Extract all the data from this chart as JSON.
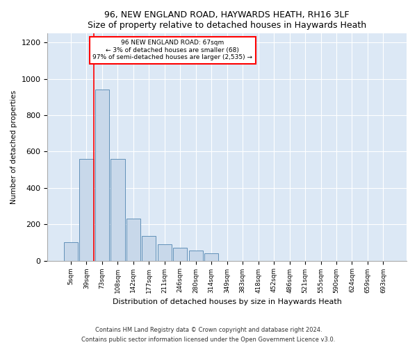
{
  "title": "96, NEW ENGLAND ROAD, HAYWARDS HEATH, RH16 3LF",
  "subtitle": "Size of property relative to detached houses in Haywards Heath",
  "xlabel": "Distribution of detached houses by size in Haywards Heath",
  "ylabel": "Number of detached properties",
  "bar_color": "#c8d8ea",
  "bar_edge_color": "#6090b8",
  "background_color": "#dce8f5",
  "bins": [
    "5sqm",
    "39sqm",
    "73sqm",
    "108sqm",
    "142sqm",
    "177sqm",
    "211sqm",
    "246sqm",
    "280sqm",
    "314sqm",
    "349sqm",
    "383sqm",
    "418sqm",
    "452sqm",
    "486sqm",
    "521sqm",
    "555sqm",
    "590sqm",
    "624sqm",
    "659sqm",
    "693sqm"
  ],
  "values": [
    100,
    560,
    940,
    560,
    230,
    135,
    90,
    70,
    55,
    40,
    0,
    0,
    0,
    0,
    0,
    0,
    0,
    0,
    0,
    0,
    0
  ],
  "ylim": [
    0,
    1250
  ],
  "yticks": [
    0,
    200,
    400,
    600,
    800,
    1000,
    1200
  ],
  "vline_bin_index": 1,
  "annotation_line1": "96 NEW ENGLAND ROAD: 67sqm",
  "annotation_line2": "← 3% of detached houses are smaller (68)",
  "annotation_line3": "97% of semi-detached houses are larger (2,535) →",
  "footer_line1": "Contains HM Land Registry data © Crown copyright and database right 2024.",
  "footer_line2": "Contains public sector information licensed under the Open Government Licence v3.0."
}
